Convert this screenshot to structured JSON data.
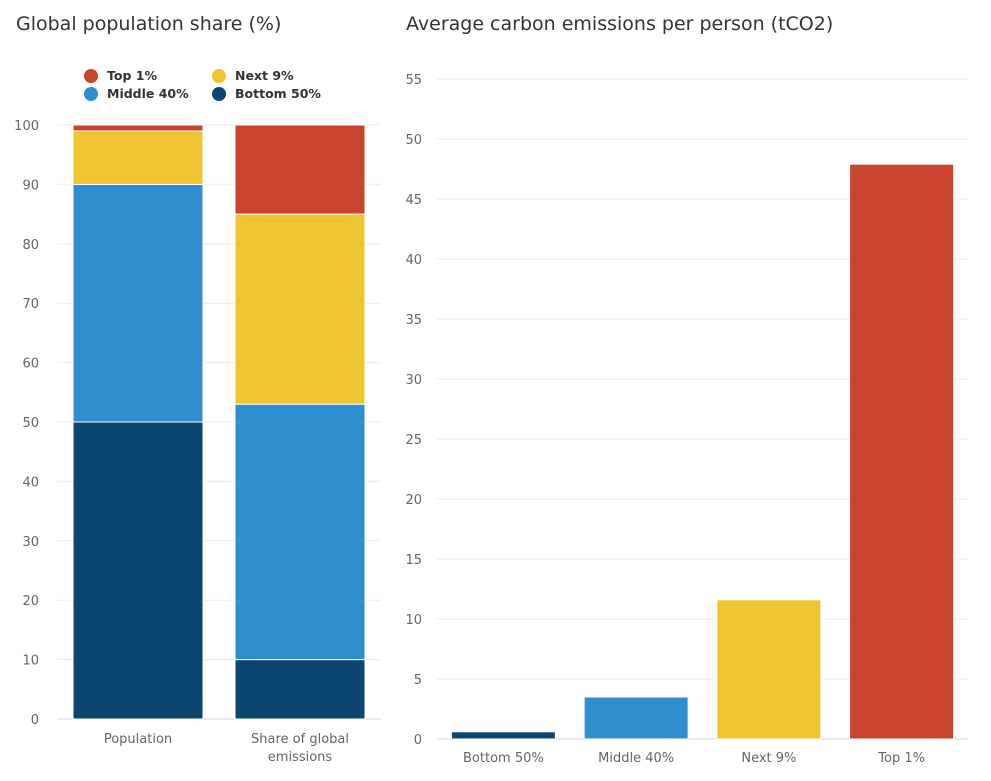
{
  "colors": {
    "top1": "#c8442c",
    "next9": "#eec530",
    "middle40": "#2f8ecd",
    "bottom50": "#0c4670",
    "grid": "#ebebeb",
    "axis": "#ccd6eb",
    "tick_text": "#666666"
  },
  "legend": [
    {
      "label": "Top 1%",
      "key": "top1"
    },
    {
      "label": "Next 9%",
      "key": "next9"
    },
    {
      "label": "Middle 40%",
      "key": "middle40"
    },
    {
      "label": "Bottom 50%",
      "key": "bottom50"
    }
  ],
  "chart_data": [
    {
      "type": "bar",
      "stacked": true,
      "title": "Global population share (%)",
      "xlabel": "",
      "ylabel": "",
      "categories": [
        "Population",
        "Share of global emissions"
      ],
      "category_lines": [
        [
          "Population"
        ],
        [
          "Share of global",
          "emissions"
        ]
      ],
      "series": [
        {
          "name": "Bottom 50%",
          "key": "bottom50",
          "values": [
            50,
            10
          ]
        },
        {
          "name": "Middle 40%",
          "key": "middle40",
          "values": [
            40,
            43
          ]
        },
        {
          "name": "Next 9%",
          "key": "next9",
          "values": [
            9,
            32
          ]
        },
        {
          "name": "Top 1%",
          "key": "top1",
          "values": [
            1,
            15
          ]
        }
      ],
      "ylim": [
        0,
        100
      ],
      "yticks": [
        0,
        10,
        20,
        30,
        40,
        50,
        60,
        70,
        80,
        90,
        100
      ],
      "grid": true,
      "legend_position": "top"
    },
    {
      "type": "bar",
      "title": "Average carbon emissions per person (tCO2)",
      "xlabel": "",
      "ylabel": "",
      "categories": [
        "Bottom 50%",
        "Middle 40%",
        "Next 9%",
        "Top 1%"
      ],
      "keys": [
        "bottom50",
        "middle40",
        "next9",
        "top1"
      ],
      "values": [
        0.6,
        3.5,
        11.6,
        47.9
      ],
      "ylim": [
        0,
        55
      ],
      "yticks": [
        0,
        5,
        10,
        15,
        20,
        25,
        30,
        35,
        40,
        45,
        50,
        55
      ],
      "grid": true
    }
  ]
}
